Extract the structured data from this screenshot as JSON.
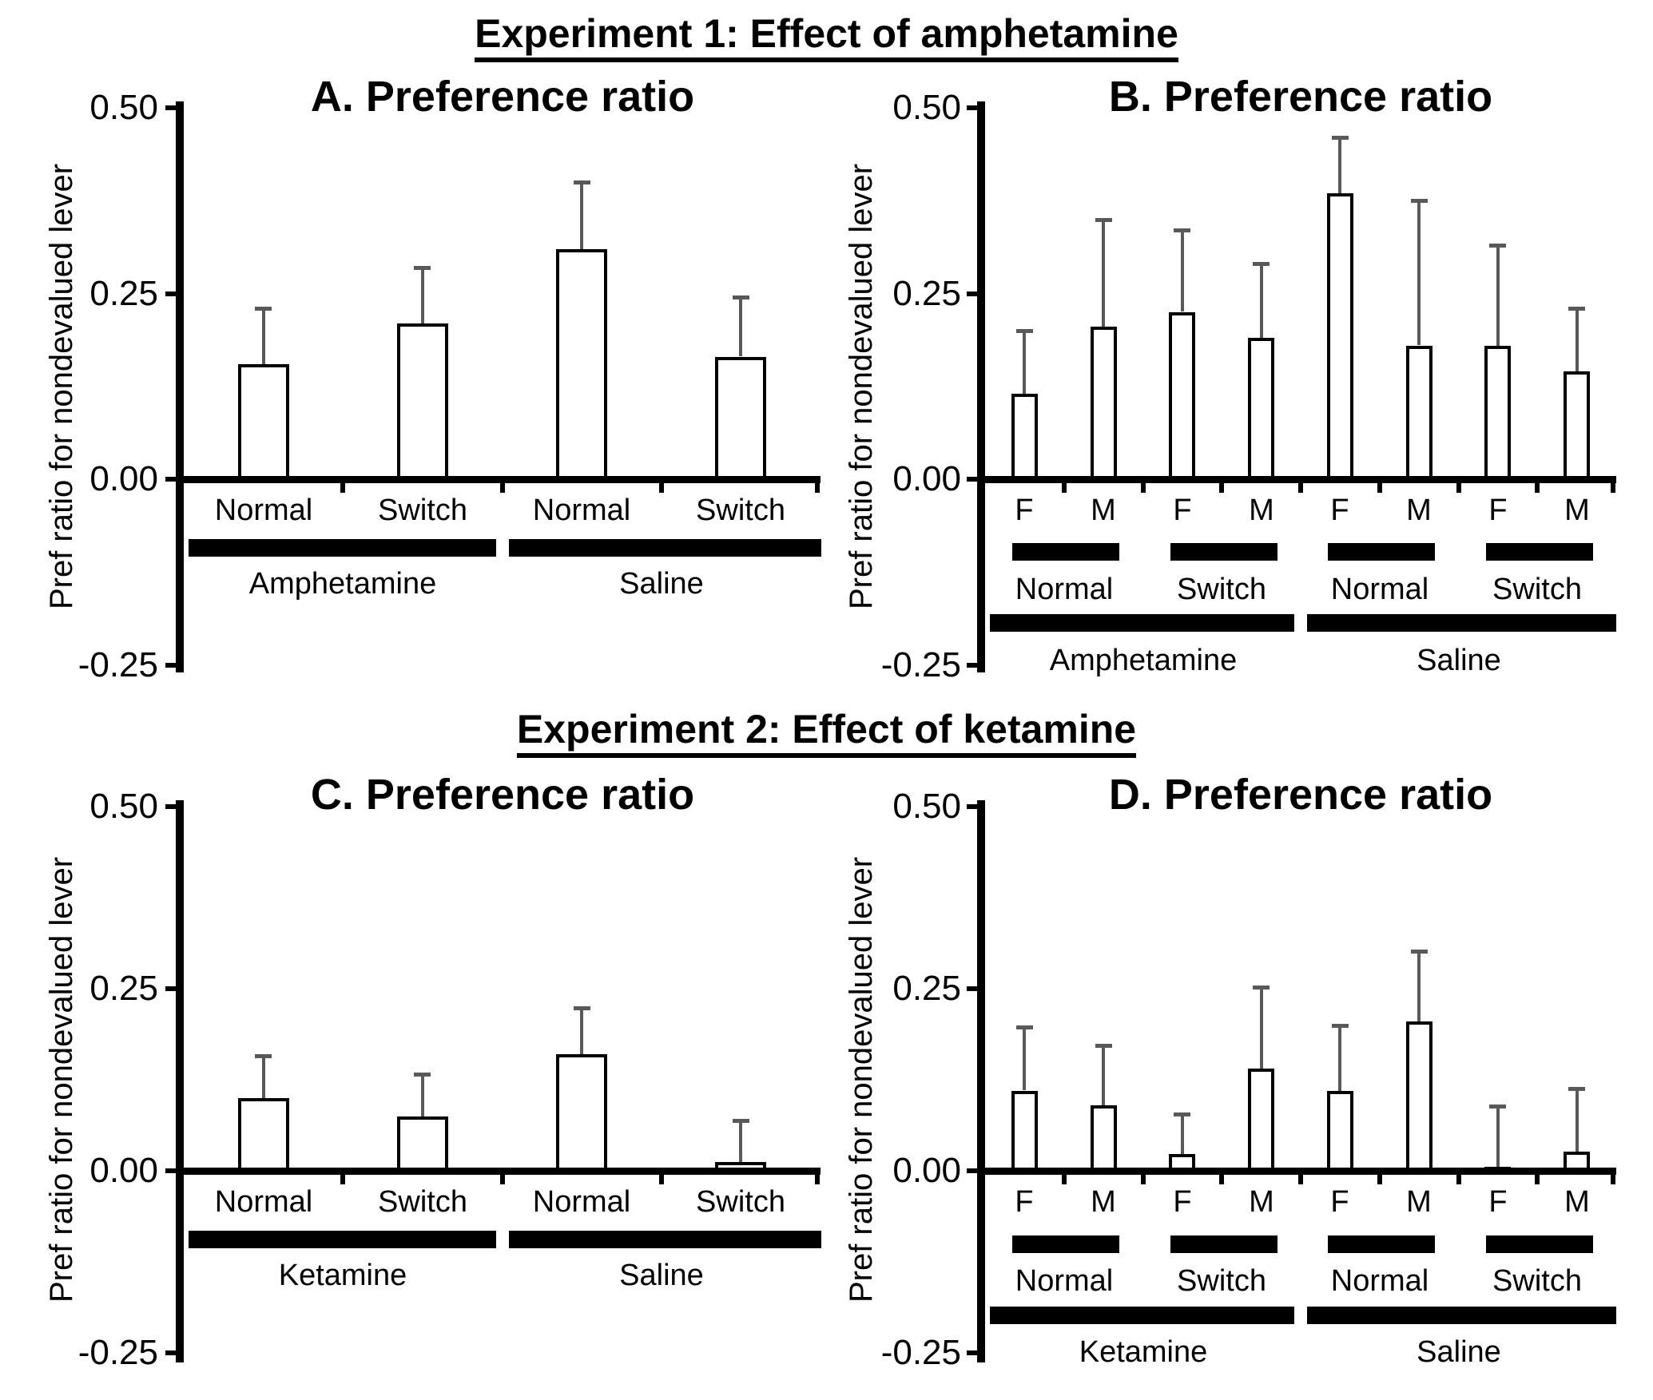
{
  "figure": {
    "background": "#ffffff",
    "text_color": "#000000",
    "section1_title": "Experiment 1: Effect of amphetamine",
    "section2_title": "Experiment 2: Effect of ketamine",
    "colors": {
      "bar_fill": "#ffffff",
      "bar_border": "#000000",
      "error_bar": "#595959",
      "axis": "#000000",
      "separator_bar": "#000000"
    }
  },
  "chart_data": [
    {
      "id": "A",
      "type": "bar",
      "title": "A. Preference ratio",
      "section": "Experiment 1: Effect of amphetamine",
      "ylabel": "Pref ratio for nondevalued lever",
      "ylim": [
        -0.25,
        0.5
      ],
      "ytick_values": [
        0.5,
        0.25,
        0,
        -0.25
      ],
      "ytick_labels": [
        "0.50",
        "0.25",
        "0.00",
        "-0.25"
      ],
      "grid": false,
      "legend": false,
      "categories": [
        "Normal",
        "Switch",
        "Normal",
        "Switch"
      ],
      "group_labels": [
        "Amphetamine",
        "Saline"
      ],
      "values": [
        0.155,
        0.21,
        0.31,
        0.165
      ],
      "errors_upper": [
        0.075,
        0.075,
        0.09,
        0.08
      ]
    },
    {
      "id": "B",
      "type": "bar",
      "title": "B. Preference ratio",
      "section": "Experiment 1: Effect of amphetamine",
      "ylabel": "Pref ratio for nondevalued lever",
      "ylim": [
        -0.25,
        0.5
      ],
      "ytick_values": [
        0.5,
        0.25,
        0,
        -0.25
      ],
      "ytick_labels": [
        "0.50",
        "0.25",
        "0.00",
        "-0.25"
      ],
      "grid": false,
      "legend": false,
      "categories": [
        "F",
        "M",
        "F",
        "M",
        "F",
        "M",
        "F",
        "M"
      ],
      "pair_labels": [
        "Normal",
        "Switch",
        "Normal",
        "Switch"
      ],
      "group_labels": [
        "Amphetamine",
        "Saline"
      ],
      "values": [
        0.115,
        0.205,
        0.225,
        0.19,
        0.385,
        0.18,
        0.18,
        0.145
      ],
      "errors_upper": [
        0.085,
        0.145,
        0.11,
        0.1,
        0.075,
        0.195,
        0.135,
        0.085
      ]
    },
    {
      "id": "C",
      "type": "bar",
      "title": "C. Preference ratio",
      "section": "Experiment 2: Effect of ketamine",
      "ylabel": "Pref ratio for nondevalued lever",
      "ylim": [
        -0.25,
        0.5
      ],
      "ytick_values": [
        0.5,
        0.25,
        0,
        -0.25
      ],
      "ytick_labels": [
        "0.50",
        "0.25",
        "0.00",
        "-0.25"
      ],
      "grid": false,
      "legend": false,
      "categories": [
        "Normal",
        "Switch",
        "Normal",
        "Switch"
      ],
      "group_labels": [
        "Ketamine",
        "Saline"
      ],
      "values": [
        0.1,
        0.075,
        0.16,
        0.012
      ],
      "errors_upper": [
        0.058,
        0.058,
        0.064,
        0.057
      ]
    },
    {
      "id": "D",
      "type": "bar",
      "title": "D. Preference ratio",
      "section": "Experiment 2: Effect of ketamine",
      "ylabel": "Pref ratio for nondevalued lever",
      "ylim": [
        -0.25,
        0.5
      ],
      "ytick_values": [
        0.5,
        0.25,
        0,
        -0.25
      ],
      "ytick_labels": [
        "0.50",
        "0.25",
        "0.00",
        "-0.25"
      ],
      "grid": false,
      "legend": false,
      "categories": [
        "F",
        "M",
        "F",
        "M",
        "F",
        "M",
        "F",
        "M"
      ],
      "pair_labels": [
        "Normal",
        "Switch",
        "Normal",
        "Switch"
      ],
      "group_labels": [
        "Ketamine",
        "Saline"
      ],
      "values": [
        0.11,
        0.09,
        0.023,
        0.14,
        0.11,
        0.205,
        0.005,
        0.026
      ],
      "errors_upper": [
        0.087,
        0.082,
        0.055,
        0.112,
        0.09,
        0.096,
        0.084,
        0.087
      ]
    }
  ]
}
